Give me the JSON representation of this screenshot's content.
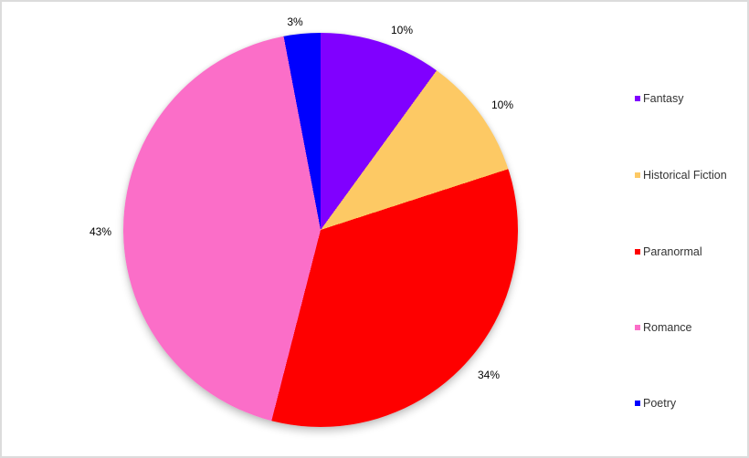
{
  "chart_data": {
    "type": "pie",
    "title": "",
    "legend_position": "right",
    "start_angle_deg": 0,
    "direction": "clockwise",
    "slices": [
      {
        "name": "Fantasy",
        "value": 10,
        "label": "10%",
        "color": "#8000FF"
      },
      {
        "name": "Historical Fiction",
        "value": 10,
        "label": "10%",
        "color": "#FDC964"
      },
      {
        "name": "Paranormal",
        "value": 34,
        "label": "34%",
        "color": "#FE0000"
      },
      {
        "name": "Romance",
        "value": 43,
        "label": "43%",
        "color": "#FB6EC8"
      },
      {
        "name": "Poetry",
        "value": 3,
        "label": "3%",
        "color": "#0000FE"
      }
    ]
  }
}
